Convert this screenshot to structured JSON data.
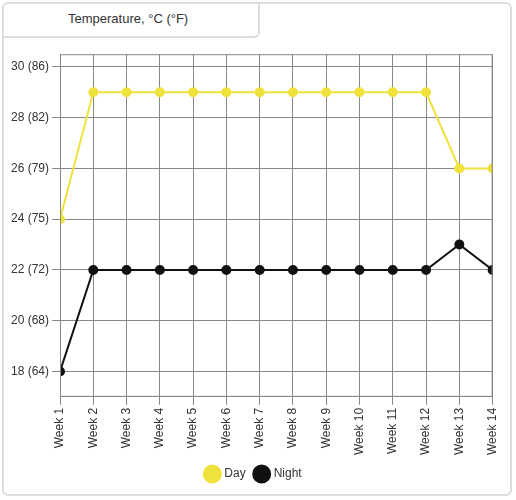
{
  "chart_data": {
    "type": "line",
    "title": "Temperature, °C (°F)",
    "categories": [
      "Week 1",
      "Week 2",
      "Week 3",
      "Week 4",
      "Week 5",
      "Week 6",
      "Week 7",
      "Week 8",
      "Week 9",
      "Week 10",
      "Week 11",
      "Week 12",
      "Week 13",
      "Week 14"
    ],
    "series": [
      {
        "name": "Day",
        "color": "#f0e23c",
        "marker": "circle",
        "values": [
          24,
          29,
          29,
          29,
          29,
          29,
          29,
          29,
          29,
          29,
          29,
          29,
          26,
          26
        ]
      },
      {
        "name": "Night",
        "color": "#111111",
        "marker": "circle",
        "values": [
          18,
          22,
          22,
          22,
          22,
          22,
          22,
          22,
          22,
          22,
          22,
          22,
          23,
          22
        ]
      }
    ],
    "ylim": [
      17,
      30.5
    ],
    "yticks": [
      {
        "value": 18,
        "label": "18 (64)"
      },
      {
        "value": 20,
        "label": "20 (68)"
      },
      {
        "value": 22,
        "label": "22 (72)"
      },
      {
        "value": 24,
        "label": "24 (75)"
      },
      {
        "value": 26,
        "label": "26 (79)"
      },
      {
        "value": 28,
        "label": "28 (82)"
      },
      {
        "value": 30,
        "label": "30 (86)"
      }
    ],
    "grid": true,
    "legend": "bottom"
  }
}
